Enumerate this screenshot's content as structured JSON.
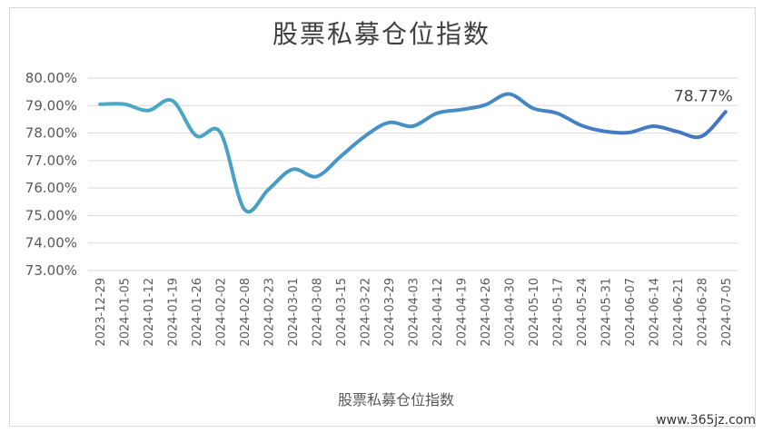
{
  "watermark": "www.365jz.com",
  "chart_data": {
    "type": "line",
    "title": "股票私募仓位指数",
    "series_name": "股票私募仓位指数",
    "last_label": "78.77%",
    "ylim": [
      73,
      80
    ],
    "yticks": [
      "73.00%",
      "74.00%",
      "75.00%",
      "76.00%",
      "77.00%",
      "78.00%",
      "79.00%",
      "80.00%"
    ],
    "grid": true,
    "legend": "bottom",
    "categories": [
      "2023-12-29",
      "2024-01-05",
      "2024-01-12",
      "2024-01-19",
      "2024-01-26",
      "2024-02-02",
      "2024-02-08",
      "2024-02-23",
      "2024-03-01",
      "2024-03-08",
      "2024-03-15",
      "2024-03-22",
      "2024-03-29",
      "2024-04-03",
      "2024-04-12",
      "2024-04-19",
      "2024-04-26",
      "2024-04-30",
      "2024-05-10",
      "2024-05-17",
      "2024-05-24",
      "2024-05-31",
      "2024-06-07",
      "2024-06-14",
      "2024-06-21",
      "2024-06-28",
      "2024-07-05"
    ],
    "values": [
      79.05,
      79.05,
      78.82,
      79.18,
      77.9,
      78.02,
      75.22,
      75.95,
      76.68,
      76.42,
      77.15,
      77.88,
      78.38,
      78.25,
      78.72,
      78.85,
      79.02,
      79.42,
      78.9,
      78.72,
      78.28,
      78.06,
      78.02,
      78.25,
      78.05,
      77.88,
      78.77
    ],
    "colors": {
      "line_start": "#4bacc6",
      "line_end": "#4472c4",
      "grid": "#d9d9d9",
      "text": "#595959"
    }
  }
}
